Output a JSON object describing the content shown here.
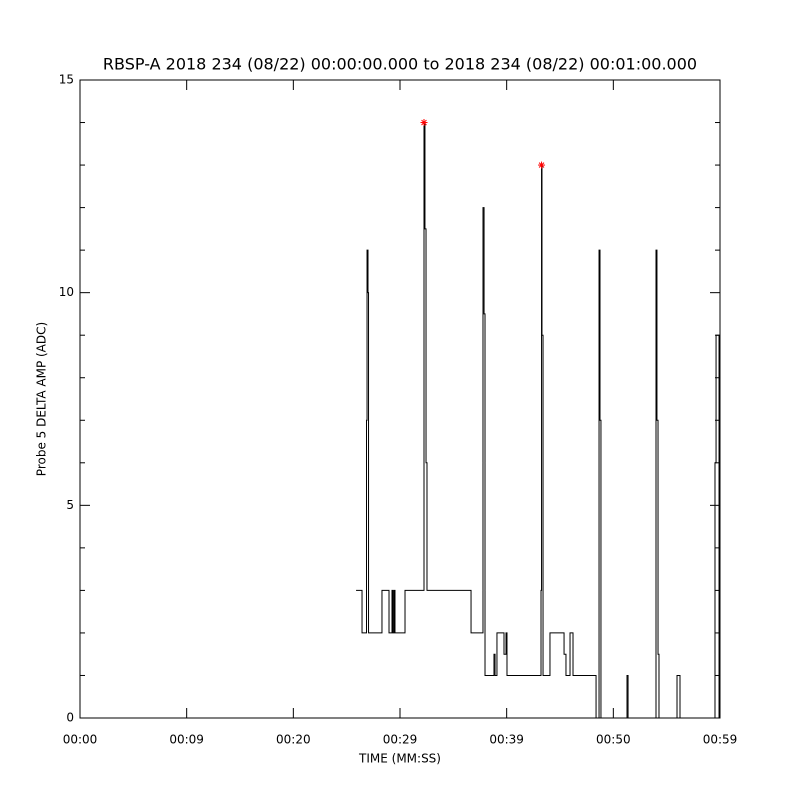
{
  "chart_data": {
    "type": "line",
    "title": "RBSP-A 2018 234 (08/22) 00:00:00.000 to 2018 234 (08/22) 00:01:00.000",
    "xlabel": "TIME (MM:SS)",
    "ylabel": "Probe 5 DELTA AMP (ADC)",
    "xlim": [
      0,
      60
    ],
    "ylim": [
      0,
      15
    ],
    "xticks": [
      {
        "value": 0,
        "label": "00:00"
      },
      {
        "value": 10,
        "label": "00:09"
      },
      {
        "value": 20,
        "label": "00:20"
      },
      {
        "value": 30,
        "label": "00:29"
      },
      {
        "value": 40,
        "label": "00:39"
      },
      {
        "value": 50,
        "label": "00:50"
      },
      {
        "value": 60,
        "label": "00:59"
      }
    ],
    "yticks": [
      0,
      5,
      10,
      15
    ],
    "series": [
      {
        "color": "#000000",
        "style": "step",
        "x": [
          25.88,
          26.44,
          26.44,
          26.81,
          26.86,
          26.91,
          27.0,
          27.05,
          28.22,
          28.31,
          28.88,
          28.97,
          29.16,
          29.25,
          29.34,
          29.44,
          29.53,
          30.38,
          30.47,
          32.16,
          32.25,
          32.34,
          32.44,
          32.53,
          36.56,
          36.66,
          37.69,
          37.78,
          37.88,
          37.97,
          38.72,
          38.81,
          38.91,
          39.09,
          39.66,
          39.75,
          39.94,
          40.03,
          43.13,
          43.22,
          43.27,
          43.31,
          43.41,
          43.97,
          44.06,
          45.19,
          45.38,
          45.56,
          45.94,
          46.13,
          46.22,
          48.28,
          48.38,
          48.56,
          48.66,
          48.75,
          48.84,
          51.19,
          51.28,
          51.38,
          53.91,
          54.0,
          54.09,
          54.19,
          54.28,
          55.88,
          55.97,
          56.16,
          56.25,
          59.44,
          59.53,
          59.63,
          59.81,
          59.91
        ],
        "values": [
          3,
          3,
          2,
          2,
          7,
          11,
          10,
          2,
          2,
          3,
          3,
          2,
          2,
          3,
          2,
          3,
          2,
          2,
          3,
          3,
          14,
          11.5,
          6,
          3,
          3,
          2,
          2,
          12,
          9.5,
          1,
          1,
          1.5,
          1,
          2,
          2,
          1.5,
          2,
          1,
          1,
          3,
          13,
          9,
          1,
          1,
          2,
          2,
          1.5,
          1,
          2,
          2,
          1,
          1,
          0,
          0,
          11,
          7,
          0,
          0,
          1,
          0,
          0,
          11,
          7,
          1.5,
          0,
          0,
          1,
          1,
          0,
          0,
          6,
          9,
          9,
          0
        ]
      },
      {
        "color": "#ff0000",
        "style": "marker",
        "x": [
          32.25,
          43.27
        ],
        "values": [
          14,
          13
        ]
      }
    ]
  }
}
